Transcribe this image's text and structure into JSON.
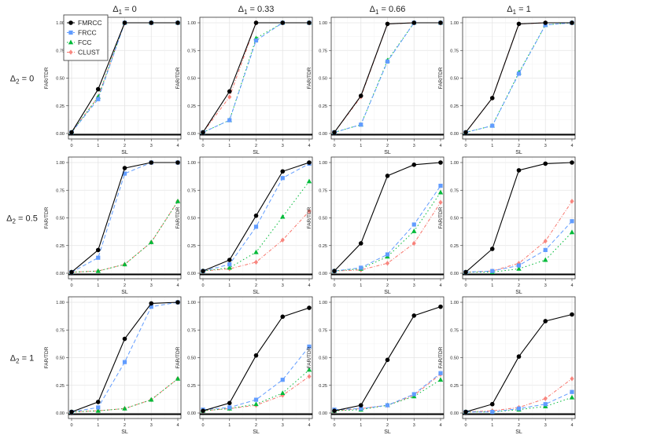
{
  "figure": {
    "col_headers": [
      "Δ1 = 0",
      "Δ1 = 0.33",
      "Δ1 = 0.66",
      "Δ1 = 1"
    ],
    "row_headers": [
      "Δ2 = 0",
      "Δ2 = 0.5",
      "Δ2 = 1"
    ],
    "colors": {
      "FMRCC": "#000000",
      "FRCC": "#619CFF",
      "FCC": "#00BA38",
      "CLUST": "#F8766D"
    }
  },
  "legend": {
    "placement": "top-left of first panel",
    "items": [
      {
        "name": "FMRCC",
        "marker": "circle",
        "color": "#000000"
      },
      {
        "name": "FRCC",
        "marker": "square",
        "color": "#619CFF"
      },
      {
        "name": "FCC",
        "marker": "triangle",
        "color": "#00BA38"
      },
      {
        "name": "CLUST",
        "marker": "diamond",
        "color": "#F8766D"
      }
    ]
  },
  "chart_data": [
    {
      "type": "line",
      "title": "Δ1 = 0 / Δ2 = 0",
      "xlabel": "SL",
      "ylabel": "FAR/TDR",
      "x": [
        0,
        1,
        2,
        3,
        4
      ],
      "ylim": [
        0,
        1
      ],
      "xticks": [
        "0",
        "1",
        "2",
        "3",
        "4"
      ],
      "yticks": [
        "0.00",
        "0.25",
        "0.50",
        "0.75",
        "1.00"
      ],
      "grid": true,
      "series": [
        {
          "name": "FMRCC",
          "values": [
            0.01,
            0.4,
            1.0,
            1.0,
            1.0
          ]
        },
        {
          "name": "FRCC",
          "values": [
            0.01,
            0.31,
            1.0,
            1.0,
            1.0
          ]
        },
        {
          "name": "FCC",
          "values": [
            0.01,
            0.33,
            1.0,
            1.0,
            1.0
          ]
        },
        {
          "name": "CLUST",
          "values": [
            0.01,
            0.33,
            1.0,
            1.0,
            1.0
          ]
        }
      ]
    },
    {
      "type": "line",
      "title": "Δ1 = 0.33 / Δ2 = 0",
      "xlabel": "SL",
      "ylabel": "FAR/TDR",
      "x": [
        0,
        1,
        2,
        3,
        4
      ],
      "ylim": [
        0,
        1
      ],
      "xticks": [
        "0",
        "1",
        "2",
        "3",
        "4"
      ],
      "yticks": [
        "0.00",
        "0.25",
        "0.50",
        "0.75",
        "1.00"
      ],
      "grid": true,
      "series": [
        {
          "name": "FMRCC",
          "values": [
            0.01,
            0.38,
            1.0,
            1.0,
            1.0
          ]
        },
        {
          "name": "FRCC",
          "values": [
            0.01,
            0.12,
            0.84,
            1.0,
            1.0
          ]
        },
        {
          "name": "FCC",
          "values": [
            0.01,
            0.12,
            0.86,
            1.0,
            1.0
          ]
        },
        {
          "name": "CLUST",
          "values": [
            0.01,
            0.33,
            1.0,
            1.0,
            1.0
          ]
        }
      ]
    },
    {
      "type": "line",
      "title": "Δ1 = 0.66 / Δ2 = 0",
      "xlabel": "SL",
      "ylabel": "FAR/TDR",
      "x": [
        0,
        1,
        2,
        3,
        4
      ],
      "ylim": [
        0,
        1
      ],
      "xticks": [
        "0",
        "1",
        "2",
        "3",
        "4"
      ],
      "yticks": [
        "0.00",
        "0.25",
        "0.50",
        "0.75",
        "1.00"
      ],
      "grid": true,
      "series": [
        {
          "name": "FMRCC",
          "values": [
            0.01,
            0.34,
            0.99,
            1.0,
            1.0
          ]
        },
        {
          "name": "FRCC",
          "values": [
            0.01,
            0.08,
            0.65,
            1.0,
            1.0
          ]
        },
        {
          "name": "FCC",
          "values": [
            0.01,
            0.08,
            0.66,
            1.0,
            1.0
          ]
        },
        {
          "name": "CLUST",
          "values": [
            0.01,
            0.33,
            0.99,
            1.0,
            1.0
          ]
        }
      ]
    },
    {
      "type": "line",
      "title": "Δ1 = 1 / Δ2 = 0",
      "xlabel": "SL",
      "ylabel": "FAR/TDR",
      "x": [
        0,
        1,
        2,
        3,
        4
      ],
      "ylim": [
        0,
        1
      ],
      "xticks": [
        "0",
        "1",
        "2",
        "3",
        "4"
      ],
      "yticks": [
        "0.00",
        "0.25",
        "0.50",
        "0.75",
        "1.00"
      ],
      "grid": true,
      "series": [
        {
          "name": "FMRCC",
          "values": [
            0.01,
            0.32,
            0.99,
            1.0,
            1.0
          ]
        },
        {
          "name": "FRCC",
          "values": [
            0.01,
            0.07,
            0.54,
            0.98,
            1.0
          ]
        },
        {
          "name": "FCC",
          "values": [
            0.01,
            0.07,
            0.55,
            0.98,
            1.0
          ]
        },
        {
          "name": "CLUST",
          "values": [
            0.01,
            0.32,
            0.99,
            1.0,
            1.0
          ]
        }
      ]
    },
    {
      "type": "line",
      "title": "Δ1 = 0 / Δ2 = 0.5",
      "xlabel": "SL",
      "ylabel": "FAR/TDR",
      "x": [
        0,
        1,
        2,
        3,
        4
      ],
      "ylim": [
        0,
        1
      ],
      "xticks": [
        "0",
        "1",
        "2",
        "3",
        "4"
      ],
      "yticks": [
        "0.00",
        "0.25",
        "0.50",
        "0.75",
        "1.00"
      ],
      "grid": true,
      "series": [
        {
          "name": "FMRCC",
          "values": [
            0.01,
            0.21,
            0.95,
            1.0,
            1.0
          ]
        },
        {
          "name": "FRCC",
          "values": [
            0.01,
            0.14,
            0.9,
            1.0,
            1.0
          ]
        },
        {
          "name": "FCC",
          "values": [
            0.01,
            0.02,
            0.08,
            0.28,
            0.65
          ]
        },
        {
          "name": "CLUST",
          "values": [
            0.01,
            0.02,
            0.08,
            0.28,
            0.65
          ]
        }
      ]
    },
    {
      "type": "line",
      "title": "Δ1 = 0.33 / Δ2 = 0.5",
      "xlabel": "SL",
      "ylabel": "FAR/TDR",
      "x": [
        0,
        1,
        2,
        3,
        4
      ],
      "ylim": [
        0,
        1
      ],
      "xticks": [
        "0",
        "1",
        "2",
        "3",
        "4"
      ],
      "yticks": [
        "0.00",
        "0.25",
        "0.50",
        "0.75",
        "1.00"
      ],
      "grid": true,
      "series": [
        {
          "name": "FMRCC",
          "values": [
            0.02,
            0.12,
            0.52,
            0.92,
            1.0
          ]
        },
        {
          "name": "FRCC",
          "values": [
            0.02,
            0.08,
            0.42,
            0.86,
            0.99
          ]
        },
        {
          "name": "FCC",
          "values": [
            0.02,
            0.05,
            0.19,
            0.51,
            0.83
          ]
        },
        {
          "name": "CLUST",
          "values": [
            0.02,
            0.04,
            0.1,
            0.3,
            0.56
          ]
        }
      ]
    },
    {
      "type": "line",
      "title": "Δ1 = 0.66 / Δ2 = 0.5",
      "xlabel": "SL",
      "ylabel": "FAR/TDR",
      "x": [
        0,
        1,
        2,
        3,
        4
      ],
      "ylim": [
        0,
        1
      ],
      "xticks": [
        "0",
        "1",
        "2",
        "3",
        "4"
      ],
      "yticks": [
        "0.00",
        "0.25",
        "0.50",
        "0.75",
        "1.00"
      ],
      "grid": true,
      "series": [
        {
          "name": "FMRCC",
          "values": [
            0.02,
            0.27,
            0.88,
            0.98,
            1.0
          ]
        },
        {
          "name": "FRCC",
          "values": [
            0.02,
            0.05,
            0.17,
            0.44,
            0.79
          ]
        },
        {
          "name": "FCC",
          "values": [
            0.02,
            0.04,
            0.15,
            0.38,
            0.73
          ]
        },
        {
          "name": "CLUST",
          "values": [
            0.02,
            0.03,
            0.09,
            0.27,
            0.64
          ]
        }
      ]
    },
    {
      "type": "line",
      "title": "Δ1 = 1 / Δ2 = 0.5",
      "xlabel": "SL",
      "ylabel": "FAR/TDR",
      "x": [
        0,
        1,
        2,
        3,
        4
      ],
      "ylim": [
        0,
        1
      ],
      "xticks": [
        "0",
        "1",
        "2",
        "3",
        "4"
      ],
      "yticks": [
        "0.00",
        "0.25",
        "0.50",
        "0.75",
        "1.00"
      ],
      "grid": true,
      "series": [
        {
          "name": "FMRCC",
          "values": [
            0.01,
            0.22,
            0.93,
            0.99,
            1.0
          ]
        },
        {
          "name": "FRCC",
          "values": [
            0.01,
            0.02,
            0.07,
            0.21,
            0.47
          ]
        },
        {
          "name": "FCC",
          "values": [
            0.01,
            0.01,
            0.04,
            0.12,
            0.37
          ]
        },
        {
          "name": "CLUST",
          "values": [
            0.01,
            0.02,
            0.09,
            0.29,
            0.65
          ]
        }
      ]
    },
    {
      "type": "line",
      "title": "Δ1 = 0 / Δ2 = 1",
      "xlabel": "SL",
      "ylabel": "FAR/TDR",
      "x": [
        0,
        1,
        2,
        3,
        4
      ],
      "ylim": [
        0,
        1
      ],
      "xticks": [
        "0",
        "1",
        "2",
        "3",
        "4"
      ],
      "yticks": [
        "0.00",
        "0.25",
        "0.50",
        "0.75",
        "1.00"
      ],
      "grid": true,
      "series": [
        {
          "name": "FMRCC",
          "values": [
            0.01,
            0.1,
            0.67,
            0.99,
            1.0
          ]
        },
        {
          "name": "FRCC",
          "values": [
            0.01,
            0.05,
            0.46,
            0.96,
            1.0
          ]
        },
        {
          "name": "FCC",
          "values": [
            0.01,
            0.02,
            0.04,
            0.12,
            0.31
          ]
        },
        {
          "name": "CLUST",
          "values": [
            0.01,
            0.02,
            0.04,
            0.12,
            0.31
          ]
        }
      ]
    },
    {
      "type": "line",
      "title": "Δ1 = 0.33 / Δ2 = 1",
      "xlabel": "SL",
      "ylabel": "FAR/TDR",
      "x": [
        0,
        1,
        2,
        3,
        4
      ],
      "ylim": [
        0,
        1
      ],
      "xticks": [
        "0",
        "1",
        "2",
        "3",
        "4"
      ],
      "yticks": [
        "0.00",
        "0.25",
        "0.50",
        "0.75",
        "1.00"
      ],
      "grid": true,
      "series": [
        {
          "name": "FMRCC",
          "values": [
            0.02,
            0.09,
            0.52,
            0.87,
            0.95
          ]
        },
        {
          "name": "FRCC",
          "values": [
            0.03,
            0.05,
            0.12,
            0.3,
            0.6
          ]
        },
        {
          "name": "FCC",
          "values": [
            0.02,
            0.04,
            0.08,
            0.18,
            0.39
          ]
        },
        {
          "name": "CLUST",
          "values": [
            0.02,
            0.04,
            0.07,
            0.16,
            0.33
          ]
        }
      ]
    },
    {
      "type": "line",
      "title": "Δ1 = 0.66 / Δ2 = 1",
      "xlabel": "SL",
      "ylabel": "FAR/TDR",
      "x": [
        0,
        1,
        2,
        3,
        4
      ],
      "ylim": [
        0,
        1
      ],
      "xticks": [
        "0",
        "1",
        "2",
        "3",
        "4"
      ],
      "yticks": [
        "0.00",
        "0.25",
        "0.50",
        "0.75",
        "1.00"
      ],
      "grid": true,
      "series": [
        {
          "name": "FMRCC",
          "values": [
            0.02,
            0.07,
            0.48,
            0.88,
            0.96
          ]
        },
        {
          "name": "FRCC",
          "values": [
            0.03,
            0.04,
            0.07,
            0.17,
            0.36
          ]
        },
        {
          "name": "FCC",
          "values": [
            0.02,
            0.03,
            0.07,
            0.15,
            0.3
          ]
        },
        {
          "name": "CLUST",
          "values": [
            0.02,
            0.04,
            0.07,
            0.16,
            0.35
          ]
        }
      ]
    },
    {
      "type": "line",
      "title": "Δ1 = 1 / Δ2 = 1",
      "xlabel": "SL",
      "ylabel": "FAR/TDR",
      "x": [
        0,
        1,
        2,
        3,
        4
      ],
      "ylim": [
        0,
        1
      ],
      "xticks": [
        "0",
        "1",
        "2",
        "3",
        "4"
      ],
      "yticks": [
        "0.00",
        "0.25",
        "0.50",
        "0.75",
        "1.00"
      ],
      "grid": true,
      "series": [
        {
          "name": "FMRCC",
          "values": [
            0.01,
            0.08,
            0.51,
            0.83,
            0.89
          ]
        },
        {
          "name": "FRCC",
          "values": [
            0.01,
            0.01,
            0.04,
            0.08,
            0.19
          ]
        },
        {
          "name": "FCC",
          "values": [
            0.01,
            0.01,
            0.03,
            0.06,
            0.14
          ]
        },
        {
          "name": "CLUST",
          "values": [
            0.01,
            0.02,
            0.05,
            0.13,
            0.31
          ]
        }
      ]
    }
  ]
}
